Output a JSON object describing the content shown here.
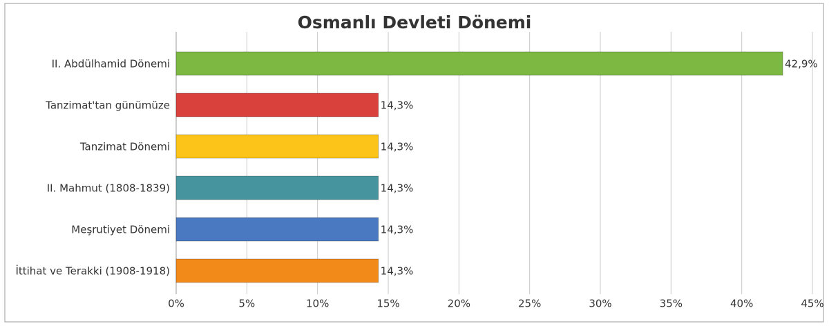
{
  "chart_data": {
    "type": "bar",
    "orientation": "horizontal",
    "title": "Osmanlı Devleti Dönemi",
    "categories": [
      "II. Abdülhamid Dönemi",
      "Tanzimat'tan günümüze",
      "Tanzimat Dönemi",
      "II. Mahmut (1808-1839)",
      "Meşrutiyet Dönemi",
      "İttihat ve Terakki (1908-1918)"
    ],
    "values": [
      42.9,
      14.3,
      14.3,
      14.3,
      14.3,
      14.3
    ],
    "value_labels": [
      "42,9%",
      "14,3%",
      "14,3%",
      "14,3%",
      "14,3%",
      "14,3%"
    ],
    "colors": [
      "#7db843",
      "#d9413d",
      "#fcc419",
      "#45949e",
      "#4a78c1",
      "#f28a1a"
    ],
    "xlim": [
      0,
      45
    ],
    "xticks": [
      {
        "value": 0,
        "label": "0%"
      },
      {
        "value": 5,
        "label": "5%"
      },
      {
        "value": 10,
        "label": "10%"
      },
      {
        "value": 15,
        "label": "15%"
      },
      {
        "value": 20,
        "label": "20%"
      },
      {
        "value": 25,
        "label": "25%"
      },
      {
        "value": 30,
        "label": "30%"
      },
      {
        "value": 35,
        "label": "35%"
      },
      {
        "value": 40,
        "label": "40%"
      },
      {
        "value": 45,
        "label": "45%"
      }
    ],
    "grid": true
  }
}
